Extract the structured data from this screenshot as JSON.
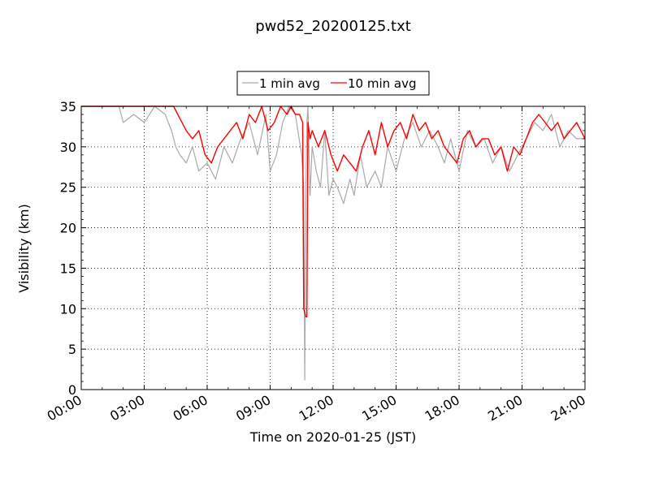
{
  "chart_data": {
    "type": "line",
    "title": "pwd52_20200125.txt",
    "xlabel": "Time on 2020-01-25 (JST)",
    "ylabel": "Visibility (km)",
    "x_tick_labels": [
      "00:00",
      "03:00",
      "06:00",
      "09:00",
      "12:00",
      "15:00",
      "18:00",
      "21:00",
      "24:00"
    ],
    "y_tick_labels": [
      "0",
      "5",
      "10",
      "15",
      "20",
      "25",
      "30",
      "35"
    ],
    "xlim_hours": [
      0,
      24
    ],
    "ylim": [
      0,
      35
    ],
    "grid": true,
    "legend": "top-center",
    "series": [
      {
        "name": "1 min avg",
        "color": "#a9a9a9",
        "x_hours": [
          0.0,
          0.5,
          1.0,
          1.5,
          1.8,
          2.0,
          2.5,
          3.0,
          3.5,
          4.0,
          4.3,
          4.5,
          4.7,
          5.0,
          5.3,
          5.6,
          6.0,
          6.4,
          6.8,
          7.2,
          7.6,
          8.0,
          8.4,
          8.8,
          9.0,
          9.3,
          9.6,
          9.9,
          10.2,
          10.5,
          10.6,
          10.65,
          10.7,
          10.75,
          10.8,
          10.9,
          11.0,
          11.2,
          11.4,
          11.6,
          11.8,
          12.0,
          12.2,
          12.5,
          12.8,
          13.0,
          13.3,
          13.6,
          14.0,
          14.3,
          14.6,
          15.0,
          15.4,
          15.8,
          16.2,
          16.6,
          17.0,
          17.3,
          17.6,
          18.0,
          18.4,
          18.8,
          19.2,
          19.6,
          20.0,
          20.4,
          20.8,
          21.2,
          21.6,
          22.0,
          22.4,
          22.8,
          23.2,
          23.6,
          24.0
        ],
        "values": [
          35,
          35,
          35,
          35,
          35,
          33,
          34,
          33,
          35,
          34,
          32,
          30,
          29,
          28,
          30,
          27,
          28,
          26,
          30,
          28,
          31,
          33,
          29,
          34,
          27,
          29,
          33,
          35,
          34,
          29,
          25,
          1.2,
          24,
          33,
          35,
          24,
          30,
          27,
          25,
          32,
          24,
          26,
          25,
          23,
          26,
          24,
          29,
          25,
          27,
          25,
          30,
          27,
          31,
          33,
          30,
          32,
          30,
          28,
          31,
          27,
          32,
          30,
          31,
          28,
          30,
          27,
          29,
          31,
          33,
          32,
          34,
          30,
          32,
          31,
          31
        ]
      },
      {
        "name": "10 min avg",
        "color": "#ff0000",
        "x_hours": [
          0.0,
          0.5,
          1.0,
          1.5,
          2.0,
          2.5,
          3.0,
          3.5,
          4.0,
          4.2,
          4.4,
          4.6,
          4.8,
          5.0,
          5.3,
          5.6,
          5.9,
          6.2,
          6.5,
          6.8,
          7.1,
          7.4,
          7.7,
          8.0,
          8.3,
          8.6,
          8.9,
          9.2,
          9.5,
          9.8,
          10.0,
          10.2,
          10.4,
          10.55,
          10.6,
          10.65,
          10.7,
          10.75,
          10.8,
          10.9,
          11.0,
          11.3,
          11.6,
          11.9,
          12.2,
          12.5,
          12.8,
          13.1,
          13.4,
          13.7,
          14.0,
          14.3,
          14.6,
          14.9,
          15.2,
          15.5,
          15.8,
          16.1,
          16.4,
          16.7,
          17.0,
          17.3,
          17.6,
          17.9,
          18.2,
          18.5,
          18.8,
          19.1,
          19.4,
          19.7,
          20.0,
          20.3,
          20.6,
          20.9,
          21.2,
          21.5,
          21.8,
          22.1,
          22.4,
          22.7,
          23.0,
          23.3,
          23.6,
          24.0
        ],
        "values": [
          35,
          35,
          35,
          35,
          35,
          35,
          35,
          35,
          35,
          35,
          35,
          34,
          33,
          32,
          31,
          32,
          29,
          28,
          30,
          31,
          32,
          33,
          31,
          34,
          33,
          35,
          32,
          33,
          35,
          34,
          35,
          34,
          34,
          33,
          10,
          9.5,
          9,
          9,
          33,
          31,
          32,
          30,
          32,
          29,
          27,
          29,
          28,
          27,
          30,
          32,
          29,
          33,
          30,
          32,
          33,
          31,
          34,
          32,
          33,
          31,
          32,
          30,
          29,
          28,
          31,
          32,
          30,
          31,
          31,
          29,
          30,
          27,
          30,
          29,
          31,
          33,
          34,
          33,
          32,
          33,
          31,
          32,
          33,
          31
        ]
      }
    ]
  }
}
